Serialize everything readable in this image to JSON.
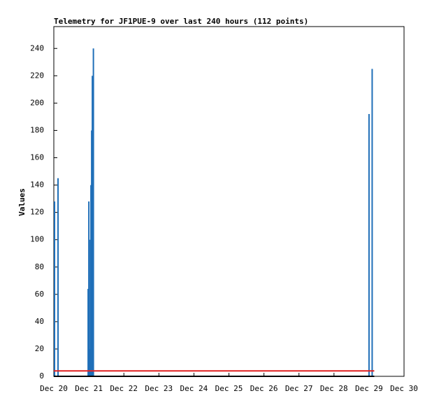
{
  "chart_data": {
    "type": "impulse",
    "title": "Telemetry for JF1PUE-9 over last 240 hours (112 points)",
    "y_label": "Values",
    "xlim": [
      20,
      30
    ],
    "xticks": [
      {
        "value": 20,
        "label": "Dec 20"
      },
      {
        "value": 21,
        "label": "Dec 21"
      },
      {
        "value": 22,
        "label": "Dec 22"
      },
      {
        "value": 23,
        "label": "Dec 23"
      },
      {
        "value": 24,
        "label": "Dec 24"
      },
      {
        "value": 25,
        "label": "Dec 25"
      },
      {
        "value": 26,
        "label": "Dec 26"
      },
      {
        "value": 27,
        "label": "Dec 27"
      },
      {
        "value": 28,
        "label": "Dec 28"
      },
      {
        "value": 29,
        "label": "Dec 29"
      },
      {
        "value": 30,
        "label": "Dec 30"
      }
    ],
    "ylim": [
      0,
      256
    ],
    "yticks": [
      0,
      20,
      40,
      60,
      80,
      100,
      120,
      140,
      160,
      180,
      200,
      220,
      240
    ],
    "series": [
      {
        "style": "impulse",
        "color": "#1f6fb8",
        "x": [
          20.02,
          20.12,
          20.98,
          21.0,
          21.02,
          21.04,
          21.06,
          21.08,
          21.1,
          21.13,
          29.0,
          29.09
        ],
        "values": [
          128,
          145,
          64,
          128,
          20,
          100,
          140,
          180,
          220,
          240,
          192,
          225
        ]
      },
      {
        "style": "line",
        "color": "#e02020",
        "x": [
          20,
          29.15
        ],
        "values": [
          4,
          4
        ]
      },
      {
        "style": "line",
        "color": "#000000",
        "x": [
          20,
          29.15
        ],
        "values": [
          0,
          0
        ]
      }
    ]
  }
}
